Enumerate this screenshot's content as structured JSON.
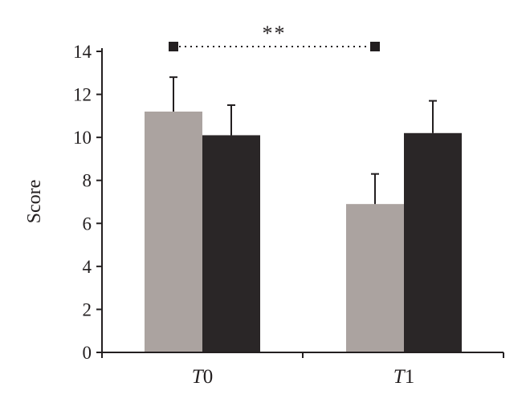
{
  "chart_data": {
    "type": "bar",
    "title": "",
    "xlabel": "",
    "ylabel": "Score",
    "ylim": [
      0,
      14
    ],
    "yticks": [
      0,
      2,
      4,
      6,
      8,
      10,
      12,
      14
    ],
    "categories": [
      {
        "italic": "T",
        "rest": "0"
      },
      {
        "italic": "T",
        "rest": "1"
      }
    ],
    "series": [
      {
        "color": "#aba3a0",
        "values": [
          11.2,
          6.9
        ],
        "errors": [
          1.6,
          1.4
        ]
      },
      {
        "color": "#2a2627",
        "values": [
          10.1,
          10.2
        ],
        "errors": [
          1.4,
          1.5
        ]
      }
    ],
    "annotation": {
      "text": "**",
      "from_category": 0,
      "to_category": 1,
      "y": 14.2
    },
    "grid": false,
    "legend": "none"
  }
}
